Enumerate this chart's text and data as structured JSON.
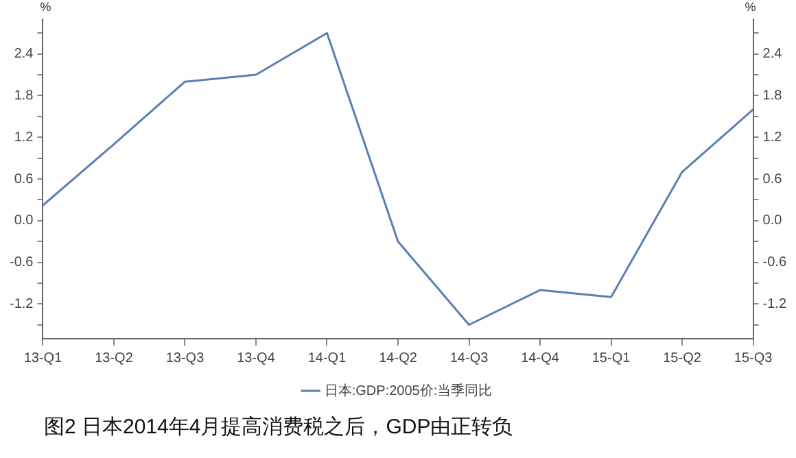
{
  "chart_data": {
    "type": "line",
    "ylabel": "%",
    "y2label": "%",
    "categories": [
      "13-Q1",
      "13-Q2",
      "13-Q3",
      "13-Q4",
      "14-Q1",
      "14-Q2",
      "14-Q3",
      "14-Q4",
      "15-Q1",
      "15-Q2",
      "15-Q3"
    ],
    "series": [
      {
        "name": "日本:GDP:2005价:当季同比",
        "color": "#5b7fb2",
        "values": [
          0.22,
          1.1,
          2.0,
          2.1,
          2.7,
          -0.3,
          -1.5,
          -1.0,
          -1.1,
          0.7,
          1.6
        ]
      }
    ],
    "ylim": [
      -1.7,
      2.9
    ],
    "yticks": [
      {
        "value": -1.5,
        "label": null
      },
      -1.2,
      {
        "value": -0.9,
        "label": null
      },
      -0.6,
      {
        "value": -0.3,
        "label": null
      },
      {
        "value": 0,
        "label": "0.0"
      },
      {
        "value": 0.3,
        "label": null
      },
      0.6,
      {
        "value": 0.9,
        "label": null
      },
      1.2,
      {
        "value": 1.5,
        "label": null
      },
      1.8,
      {
        "value": 2.1,
        "label": null
      },
      2.4,
      {
        "value": 2.7,
        "label": null
      }
    ],
    "y2lim": [
      -1.7,
      2.9
    ],
    "y2ticks": [
      {
        "value": -1.5,
        "label": null
      },
      -1.2,
      {
        "value": -0.9,
        "label": null
      },
      -0.6,
      {
        "value": -0.3,
        "label": null
      },
      {
        "value": 0,
        "label": "0.0"
      },
      {
        "value": 0.3,
        "label": null
      },
      0.6,
      {
        "value": 0.9,
        "label": null
      },
      1.2,
      {
        "value": 1.5,
        "label": null
      },
      1.8,
      {
        "value": 2.1,
        "label": null
      },
      2.4,
      {
        "value": 2.7,
        "label": null
      }
    ],
    "grid": false,
    "legend": "bottom",
    "marker": "none",
    "line_style": "solid",
    "annotations": [
      "图2 日本2014年4月提高消费税之后，GDP由正转负"
    ]
  }
}
